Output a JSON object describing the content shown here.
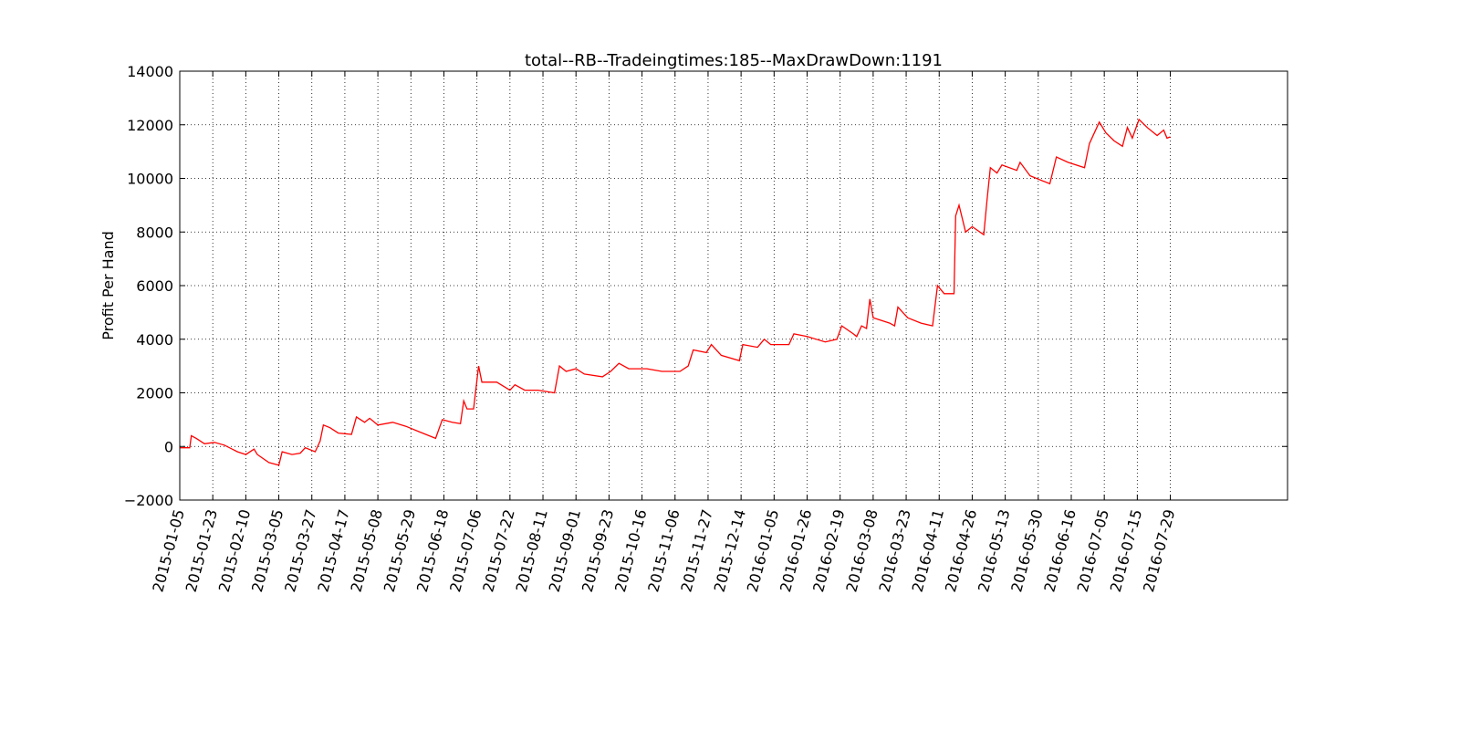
{
  "chart_data": {
    "type": "line",
    "title": "total--RB--Tradeingtimes:185--MaxDrawDown:1191",
    "y_label": "Profit Per Hand",
    "series": [
      {
        "name": "total",
        "color": "#ff0000",
        "x": [
          0,
          6,
          7,
          10,
          15,
          21,
          27,
          35,
          40,
          45,
          47,
          54,
          60,
          62,
          68,
          73,
          76,
          82,
          85,
          87,
          91,
          96,
          104,
          107,
          112,
          115,
          120,
          129,
          137,
          145,
          155,
          159,
          165,
          170,
          172,
          174,
          178,
          181,
          183,
          192,
          200,
          203,
          209,
          217,
          227,
          230,
          234,
          240,
          245,
          256,
          261,
          266,
          272,
          283,
          292,
          303,
          308,
          311,
          319,
          322,
          328,
          339,
          341,
          350,
          354,
          358,
          369,
          372,
          380,
          391,
          398,
          401,
          408,
          410,
          413,
          416,
          418,
          420,
          430,
          433,
          435,
          438,
          441,
          449,
          456,
          459,
          463,
          469,
          470,
          472,
          476,
          480,
          487,
          489,
          491,
          495,
          498,
          507,
          509,
          515,
          527,
          531,
          538,
          548,
          551,
          557,
          561,
          566,
          571,
          574,
          577,
          581,
          586,
          592,
          596,
          598,
          600
        ],
        "values": [
          -50,
          -50,
          400,
          300,
          100,
          150,
          50,
          -200,
          -300,
          -100,
          -300,
          -600,
          -700,
          -200,
          -300,
          -250,
          -50,
          -200,
          200,
          800,
          700,
          500,
          450,
          1100,
          900,
          1050,
          800,
          900,
          750,
          550,
          300,
          1000,
          900,
          850,
          1700,
          1400,
          1400,
          3000,
          2400,
          2400,
          2100,
          2300,
          2100,
          2100,
          2000,
          3000,
          2800,
          2900,
          2700,
          2600,
          2800,
          3100,
          2900,
          2900,
          2800,
          2800,
          3000,
          3600,
          3500,
          3800,
          3400,
          3200,
          3800,
          3700,
          4000,
          3800,
          3800,
          4200,
          4100,
          3900,
          4000,
          4500,
          4200,
          4100,
          4500,
          4400,
          5500,
          4800,
          4600,
          4500,
          5200,
          5000,
          4800,
          4600,
          4500,
          6000,
          5700,
          5700,
          8600,
          9000,
          8000,
          8200,
          7900,
          9200,
          10400,
          10200,
          10500,
          10300,
          10600,
          10100,
          9800,
          10800,
          10600,
          10400,
          11300,
          12100,
          11700,
          11400,
          11200,
          11900,
          11500,
          12200,
          11900,
          11600,
          11800,
          11500,
          11550
        ]
      }
    ],
    "xlim": [
      0,
      671
    ],
    "xticks": [
      {
        "value": 0,
        "label": "2015-01-05"
      },
      {
        "value": 20,
        "label": "2015-01-23"
      },
      {
        "value": 40,
        "label": "2015-02-10"
      },
      {
        "value": 60,
        "label": "2015-03-05"
      },
      {
        "value": 80,
        "label": "2015-03-27"
      },
      {
        "value": 100,
        "label": "2015-04-17"
      },
      {
        "value": 120,
        "label": "2015-05-08"
      },
      {
        "value": 140,
        "label": "2015-05-29"
      },
      {
        "value": 160,
        "label": "2015-06-18"
      },
      {
        "value": 180,
        "label": "2015-07-06"
      },
      {
        "value": 200,
        "label": "2015-07-22"
      },
      {
        "value": 220,
        "label": "2015-08-11"
      },
      {
        "value": 240,
        "label": "2015-09-01"
      },
      {
        "value": 260,
        "label": "2015-09-23"
      },
      {
        "value": 280,
        "label": "2015-10-16"
      },
      {
        "value": 300,
        "label": "2015-11-06"
      },
      {
        "value": 320,
        "label": "2015-11-27"
      },
      {
        "value": 340,
        "label": "2015-12-14"
      },
      {
        "value": 360,
        "label": "2016-01-05"
      },
      {
        "value": 380,
        "label": "2016-01-26"
      },
      {
        "value": 400,
        "label": "2016-02-19"
      },
      {
        "value": 420,
        "label": "2016-03-08"
      },
      {
        "value": 440,
        "label": "2016-03-23"
      },
      {
        "value": 460,
        "label": "2016-04-11"
      },
      {
        "value": 480,
        "label": "2016-04-26"
      },
      {
        "value": 500,
        "label": "2016-05-13"
      },
      {
        "value": 520,
        "label": "2016-05-30"
      },
      {
        "value": 540,
        "label": "2016-06-16"
      },
      {
        "value": 560,
        "label": "2016-07-05"
      },
      {
        "value": 580,
        "label": "2016-07-15"
      },
      {
        "value": 600,
        "label": "2016-07-29"
      }
    ],
    "ylim": [
      -2000,
      14000
    ],
    "yticks": [
      {
        "value": -2000,
        "label": "−2000"
      },
      0,
      2000,
      4000,
      6000,
      8000,
      10000,
      12000,
      14000
    ],
    "grid": true
  }
}
